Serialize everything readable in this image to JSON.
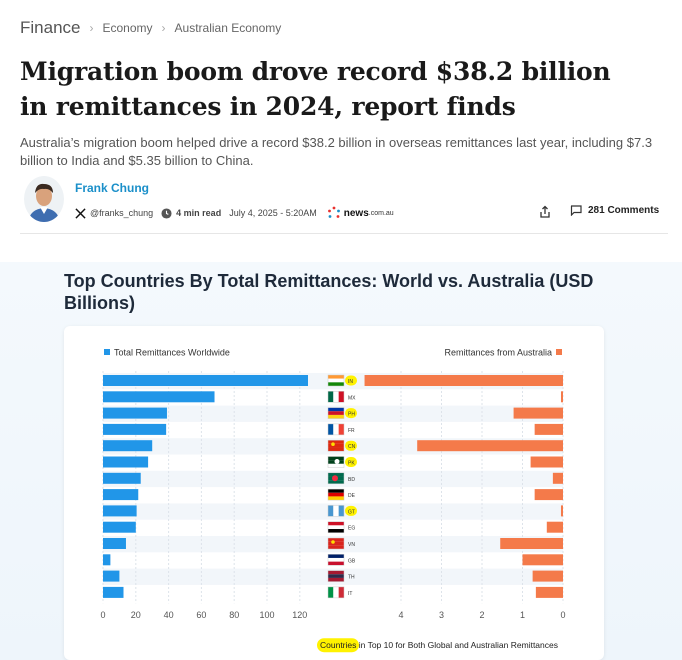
{
  "breadcrumb": {
    "root": "Finance",
    "level1": "Economy",
    "level2": "Australian Economy"
  },
  "article": {
    "headline": "Migration boom drove record $38.2 billion in remittances in 2024, report finds",
    "standfirst": "Australia’s migration boom helped drive a record $38.2 billion in overseas remittances last year, including $7.3 billion to India and $5.35 billion to China.",
    "author": "Frank Chung",
    "handle": "@franks_chung",
    "read_time": "4 min read",
    "date": "July 4, 2025 - 5:20AM",
    "brand": "news",
    "brand_suffix": ".com.au",
    "comments": "281 Comments"
  },
  "colors": {
    "worldwide": "#2196e8",
    "australia": "#f47a4a",
    "accent_link": "#1a8fc9",
    "highlight": "#fff200"
  },
  "chart_data": {
    "type": "bar",
    "title": "Top Countries By Total Remittances: World vs. Australia (USD Billions)",
    "footnote_highlight": "Countries",
    "footnote_rest": " in Top 10 for Both Global and Australian Remittances",
    "categories": [
      "IN",
      "MX",
      "PH",
      "FR",
      "CN",
      "PK",
      "BD",
      "DE",
      "GT",
      "EG",
      "VN",
      "GB",
      "TH",
      "IT"
    ],
    "highlighted_categories": [
      "IN",
      "PH",
      "CN",
      "PK",
      "GT"
    ],
    "series": [
      {
        "name": "Total Remittances Worldwide",
        "values": [
          125,
          68,
          39,
          38.5,
          30,
          27.5,
          23,
          21.5,
          20.5,
          20,
          14,
          4.5,
          10,
          12.5
        ],
        "xlim": [
          0,
          140
        ],
        "ticks": [
          0,
          20,
          40,
          60,
          80,
          100,
          120
        ],
        "color": "#2196e8"
      },
      {
        "name": "Remittances from Australia",
        "values": [
          4.9,
          0.05,
          1.22,
          0.7,
          3.6,
          0.8,
          0.25,
          0.7,
          0.05,
          0.4,
          1.55,
          1.0,
          0.75,
          0.67
        ],
        "xlim": [
          0,
          4.9
        ],
        "ticks": [
          4,
          3,
          2,
          1,
          0
        ],
        "color": "#f47a4a"
      }
    ],
    "grid": true,
    "legend": "top"
  }
}
